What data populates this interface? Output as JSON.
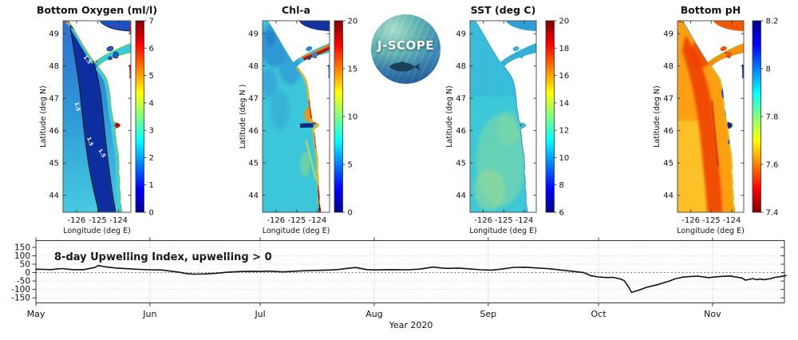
{
  "panels": [
    {
      "title": "Bottom Oxygen (ml/l)",
      "ylabel": "Latitude (deg N)",
      "xlabel": "Longitude (deg E)",
      "lat_ticks": [
        "49",
        "48",
        "47",
        "46",
        "45",
        "44"
      ],
      "lon_ticks": [
        "-126",
        "-125",
        "-124"
      ],
      "colorbar": {
        "min": 0,
        "max": 7,
        "ticks": [
          "7",
          "6",
          "5",
          "4",
          "3",
          "2",
          "1",
          "0"
        ]
      },
      "contour_label": "1.5"
    },
    {
      "title": "Chl-a",
      "ylabel": "Latitude (deg N )",
      "xlabel": "Longitude (deg E)",
      "lat_ticks": [
        "49",
        "48",
        "47",
        "46",
        "45",
        "44"
      ],
      "lon_ticks": [
        "-126",
        "-125",
        "-124"
      ],
      "colorbar": {
        "min": 0,
        "max": 20,
        "ticks": [
          "20",
          "15",
          "10",
          "5",
          "0"
        ]
      }
    },
    {
      "title": "SST (deg C)",
      "ylabel": "Latitude (deg N)",
      "xlabel": "Longitude (deg E)",
      "lat_ticks": [
        "49",
        "48",
        "47",
        "46",
        "45",
        "44"
      ],
      "lon_ticks": [
        "-126",
        "-125",
        "-124"
      ],
      "colorbar": {
        "min": 6,
        "max": 20,
        "ticks": [
          "20",
          "18",
          "16",
          "14",
          "12",
          "10",
          "8",
          "6"
        ]
      }
    },
    {
      "title": "Bottom pH",
      "ylabel": "Latitude (deg N)",
      "xlabel": "Longitude (deg E)",
      "lat_ticks": [
        "49",
        "48",
        "47",
        "46",
        "45",
        "44"
      ],
      "lon_ticks": [
        "-126",
        "-125",
        "-124"
      ],
      "colorbar": {
        "min": 7.4,
        "max": 8.2,
        "ticks": [
          "8.2",
          "8",
          "7.8",
          "7.6",
          "7.4"
        ],
        "reversed": true
      }
    }
  ],
  "logo": {
    "text": "J-SCOPE"
  },
  "timeseries": {
    "annotation": "8-day Upwelling Index, upwelling > 0",
    "xlabel": "Year 2020",
    "months": [
      "May",
      "Jun",
      "Jul",
      "Aug",
      "Sep",
      "Oct",
      "Nov"
    ],
    "y_ticks": [
      "150",
      "100",
      "50",
      "0",
      "-50",
      "-100",
      "-150"
    ]
  },
  "chart_data": [
    {
      "type": "heatmap",
      "title": "Bottom Oxygen (ml/l)",
      "variable": "bottom dissolved oxygen",
      "units": "ml/l",
      "value_range": [
        0,
        7
      ],
      "colorbar_ticks": [
        7,
        6,
        5,
        4,
        3,
        2,
        1,
        0
      ],
      "colormap": "jet",
      "lat_range": [
        43.5,
        49.4
      ],
      "lon_range": [
        -126.6,
        -123.4
      ],
      "lat_ticks": [
        49,
        48,
        47,
        46,
        45,
        44
      ],
      "lon_ticks": [
        -126,
        -125,
        -124
      ],
      "contour": {
        "value": 1.5,
        "label": "1.5"
      }
    },
    {
      "type": "heatmap",
      "title": "Chl-a",
      "variable": "surface chlorophyll-a",
      "value_range": [
        0,
        20
      ],
      "colorbar_ticks": [
        20,
        15,
        10,
        5,
        0
      ],
      "colormap": "jet",
      "lat_range": [
        43.5,
        49.4
      ],
      "lon_range": [
        -126.6,
        -123.4
      ],
      "lat_ticks": [
        49,
        48,
        47,
        46,
        45,
        44
      ],
      "lon_ticks": [
        -126,
        -125,
        -124
      ]
    },
    {
      "type": "heatmap",
      "title": "SST (deg C)",
      "variable": "sea surface temperature",
      "units": "deg C",
      "value_range": [
        6,
        20
      ],
      "colorbar_ticks": [
        20,
        18,
        16,
        14,
        12,
        10,
        8,
        6
      ],
      "colormap": "jet",
      "lat_range": [
        43.5,
        49.4
      ],
      "lon_range": [
        -126.6,
        -123.4
      ],
      "lat_ticks": [
        49,
        48,
        47,
        46,
        45,
        44
      ],
      "lon_ticks": [
        -126,
        -125,
        -124
      ]
    },
    {
      "type": "heatmap",
      "title": "Bottom pH",
      "variable": "bottom pH",
      "value_range": [
        7.4,
        8.2
      ],
      "colorbar_ticks": [
        8.2,
        8.0,
        7.8,
        7.6,
        7.4
      ],
      "colormap": "jet reversed",
      "lat_range": [
        43.5,
        49.4
      ],
      "lon_range": [
        -126.6,
        -123.4
      ],
      "lat_ticks": [
        49,
        48,
        47,
        46,
        45,
        44
      ],
      "lon_ticks": [
        -126,
        -125,
        -124
      ]
    },
    {
      "type": "line",
      "title": "8-day Upwelling Index, upwelling > 0",
      "xlabel": "Year 2020",
      "x_unit": "days since May 1, 2020",
      "x_month_ticks": {
        "labels": [
          "May",
          "Jun",
          "Jul",
          "Aug",
          "Sep",
          "Oct",
          "Nov"
        ],
        "days": [
          0,
          31,
          61,
          92,
          123,
          153,
          184
        ]
      },
      "ylim": [
        -180,
        190
      ],
      "y_ticks": [
        150,
        100,
        50,
        0,
        -50,
        -100,
        -150
      ],
      "zero_line": true,
      "grid": true,
      "points": [
        [
          0,
          20
        ],
        [
          2,
          19
        ],
        [
          4,
          18
        ],
        [
          7,
          24
        ],
        [
          10,
          18
        ],
        [
          13,
          18
        ],
        [
          16,
          30
        ],
        [
          17,
          42
        ],
        [
          19,
          34
        ],
        [
          22,
          27
        ],
        [
          25,
          23
        ],
        [
          28,
          19
        ],
        [
          31,
          17
        ],
        [
          34,
          16
        ],
        [
          37,
          8
        ],
        [
          39,
          2
        ],
        [
          41,
          -6
        ],
        [
          43,
          -9
        ],
        [
          46,
          -8
        ],
        [
          49,
          -4
        ],
        [
          52,
          2
        ],
        [
          55,
          6
        ],
        [
          58,
          8
        ],
        [
          61,
          7
        ],
        [
          64,
          9
        ],
        [
          67,
          4
        ],
        [
          70,
          8
        ],
        [
          73,
          11
        ],
        [
          76,
          13
        ],
        [
          79,
          15
        ],
        [
          82,
          18
        ],
        [
          85,
          26
        ],
        [
          87,
          30
        ],
        [
          90,
          18
        ],
        [
          92,
          16
        ],
        [
          96,
          18
        ],
        [
          101,
          17
        ],
        [
          104,
          20
        ],
        [
          106,
          26
        ],
        [
          108,
          33
        ],
        [
          110,
          28
        ],
        [
          112,
          25
        ],
        [
          115,
          27
        ],
        [
          118,
          22
        ],
        [
          121,
          17
        ],
        [
          124,
          15
        ],
        [
          127,
          22
        ],
        [
          130,
          31
        ],
        [
          133,
          32
        ],
        [
          136,
          28
        ],
        [
          139,
          24
        ],
        [
          140,
          22
        ],
        [
          143,
          15
        ],
        [
          146,
          8
        ],
        [
          149,
          0
        ],
        [
          151,
          -19
        ],
        [
          153,
          -26
        ],
        [
          155,
          -29
        ],
        [
          157,
          -28
        ],
        [
          159,
          -38
        ],
        [
          160,
          -48
        ],
        [
          161,
          -80
        ],
        [
          162,
          -118
        ],
        [
          164,
          -104
        ],
        [
          166,
          -88
        ],
        [
          169,
          -72
        ],
        [
          172,
          -52
        ],
        [
          174,
          -36
        ],
        [
          176,
          -27
        ],
        [
          178,
          -23
        ],
        [
          180,
          -21
        ],
        [
          183,
          -30
        ],
        [
          185,
          -25
        ],
        [
          187,
          -22
        ],
        [
          189,
          -20
        ],
        [
          190,
          -25
        ],
        [
          192,
          -32
        ],
        [
          193,
          -45
        ],
        [
          195,
          -36
        ],
        [
          196,
          -42
        ],
        [
          197,
          -38
        ],
        [
          198,
          -42
        ],
        [
          200,
          -35
        ],
        [
          201,
          -28
        ],
        [
          203,
          -22
        ],
        [
          204,
          -18
        ]
      ]
    }
  ]
}
